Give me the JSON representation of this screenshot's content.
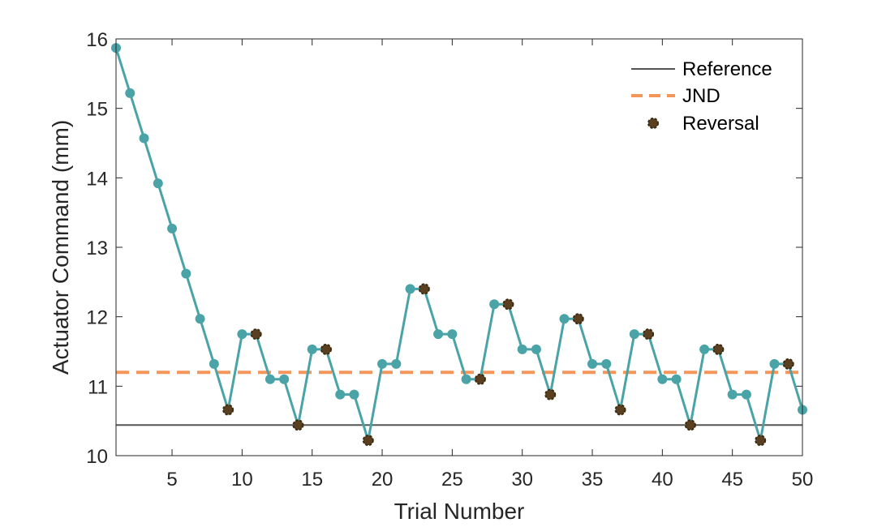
{
  "chart_data": {
    "type": "line",
    "title": "",
    "xlabel": "Trial Number",
    "ylabel": "Actuator Command (mm)",
    "xlim": [
      1,
      50
    ],
    "ylim": [
      10,
      16
    ],
    "xticks": [
      5,
      10,
      15,
      20,
      25,
      30,
      35,
      40,
      45,
      50
    ],
    "yticks": [
      10,
      11,
      12,
      13,
      14,
      15,
      16
    ],
    "grid": false,
    "legend_position": "top-right",
    "series": [
      {
        "name": "",
        "kind": "line-with-markers",
        "color": "#4aa3a6",
        "x": [
          1,
          2,
          3,
          4,
          5,
          6,
          7,
          8,
          9,
          10,
          11,
          12,
          13,
          14,
          15,
          16,
          17,
          18,
          19,
          20,
          21,
          22,
          23,
          24,
          25,
          26,
          27,
          28,
          29,
          30,
          31,
          32,
          33,
          34,
          35,
          36,
          37,
          38,
          39,
          40,
          41,
          42,
          43,
          44,
          45,
          46,
          47,
          48,
          49,
          50
        ],
        "y": [
          15.87,
          15.22,
          14.57,
          13.92,
          13.27,
          12.62,
          11.97,
          11.32,
          10.66,
          11.75,
          11.75,
          11.1,
          11.1,
          10.44,
          11.53,
          11.53,
          10.88,
          10.88,
          10.22,
          11.32,
          11.32,
          12.4,
          12.4,
          11.75,
          11.75,
          11.1,
          11.1,
          12.18,
          12.18,
          11.53,
          11.53,
          10.88,
          11.97,
          11.97,
          11.32,
          11.32,
          10.66,
          11.75,
          11.75,
          11.1,
          11.1,
          10.44,
          11.53,
          11.53,
          10.88,
          10.88,
          10.22,
          11.32,
          11.32,
          10.66
        ]
      },
      {
        "name": "Reference",
        "kind": "hline",
        "color": "#555555",
        "y": 10.44
      },
      {
        "name": "JND",
        "kind": "hline-dashed",
        "color": "#f4955a",
        "y": 11.2
      },
      {
        "name": "Reversal",
        "kind": "scatter",
        "color": "#5a4020",
        "x": [
          9,
          11,
          14,
          16,
          19,
          23,
          27,
          29,
          32,
          34,
          37,
          39,
          42,
          44,
          47,
          49
        ],
        "y": [
          10.66,
          11.75,
          10.44,
          11.53,
          10.22,
          12.4,
          11.1,
          12.18,
          10.88,
          11.97,
          10.66,
          11.75,
          10.44,
          11.53,
          10.22,
          11.32
        ]
      }
    ],
    "legend": [
      "Reference",
      "JND",
      "Reversal"
    ]
  }
}
